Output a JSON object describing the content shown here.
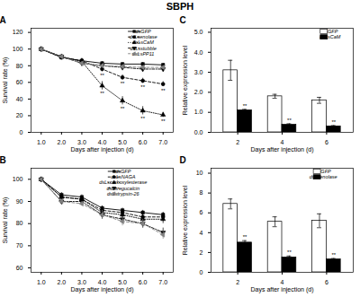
{
  "title": "SBPH",
  "chart_data": [
    {
      "type": "line",
      "title": "A",
      "xlabel": "Days after injection (d)",
      "ylabel": "Survival rate (%)",
      "x": [
        1,
        2,
        3,
        4,
        5,
        6,
        7
      ],
      "xlim": [
        0.5,
        7.5
      ],
      "xticks": [
        1,
        2,
        3,
        4,
        5,
        6,
        7
      ],
      "ylim": [
        0,
        125
      ],
      "yticks": [
        0,
        20,
        40,
        60,
        80,
        100,
        120
      ],
      "legend": "upper right",
      "series": [
        {
          "name": "dsGFP",
          "color": "black",
          "marker": "square",
          "line_style": "solid",
          "values": [
            100,
            90,
            86,
            83,
            82,
            82,
            81
          ],
          "errors": [
            0,
            2,
            2,
            2,
            2,
            2,
            2
          ]
        },
        {
          "name": "dsLsenolase",
          "color": "black",
          "marker": "circle",
          "line_style": "dashed",
          "values": [
            100,
            90,
            86,
            76,
            66,
            62,
            58
          ],
          "errors": [
            0,
            2,
            3,
            3,
            3,
            3,
            3
          ]
        },
        {
          "name": "dsLsCaM",
          "color": "black",
          "marker": "triangle-up",
          "line_style": "dotted",
          "values": [
            100,
            91,
            85,
            56,
            38,
            26,
            21
          ],
          "errors": [
            0,
            2,
            3,
            5,
            5,
            5,
            3
          ]
        },
        {
          "name": "dsLsstubble",
          "color": "black",
          "marker": "triangle-down",
          "line_style": "dashdot",
          "values": [
            100,
            91,
            83,
            80,
            78,
            76,
            76
          ],
          "errors": [
            0,
            2,
            2,
            2,
            2,
            2,
            2
          ]
        },
        {
          "name": "dsLsPP11",
          "color": "gray",
          "marker": "triangle-left",
          "line_style": "dashed",
          "values": [
            100,
            91,
            83,
            80,
            79,
            78,
            78
          ],
          "errors": [
            0,
            2,
            2,
            2,
            2,
            2,
            2
          ]
        }
      ],
      "annotations": [
        {
          "text": "**",
          "x": 4,
          "series": "dsLsenolase"
        },
        {
          "text": "**",
          "x": 5,
          "series": "dsLsenolase"
        },
        {
          "text": "**",
          "x": 6,
          "series": "dsLsenolase"
        },
        {
          "text": "**",
          "x": 7,
          "series": "dsLsenolase"
        },
        {
          "text": "**",
          "x": 4,
          "series": "dsLsCaM"
        },
        {
          "text": "**",
          "x": 5,
          "series": "dsLsCaM"
        },
        {
          "text": "**",
          "x": 6,
          "series": "dsLsCaM"
        },
        {
          "text": "**",
          "x": 7,
          "series": "dsLsCaM"
        }
      ]
    },
    {
      "type": "bar",
      "title": "C",
      "xlabel": "Days after injection (d)",
      "ylabel": "Relative expression level",
      "categories": [
        "2",
        "4",
        "6"
      ],
      "ylim": [
        0,
        5.2
      ],
      "yticks": [
        0,
        1,
        2,
        3,
        4,
        5
      ],
      "legend": "upper right",
      "series": [
        {
          "name": "dsGFP",
          "color": "white",
          "values": [
            3.1,
            1.8,
            1.6
          ],
          "errors": [
            0.5,
            0.1,
            0.15
          ]
        },
        {
          "name": "dsLsCaM",
          "color": "black",
          "values": [
            1.1,
            0.38,
            0.3
          ],
          "errors": [
            0.05,
            0.05,
            0.04
          ]
        }
      ],
      "annotations": [
        {
          "text": "**",
          "category": "2",
          "series": "dsLsCaM"
        },
        {
          "text": "**",
          "category": "4",
          "series": "dsLsCaM"
        },
        {
          "text": "**",
          "category": "6",
          "series": "dsLsCaM"
        }
      ]
    },
    {
      "type": "line",
      "title": "B",
      "xlabel": "Days after injection (d)",
      "ylabel": "Survival rate (%)",
      "x": [
        1,
        2,
        3,
        4,
        5,
        6,
        7
      ],
      "xlim": [
        0.5,
        7.5
      ],
      "xticks": [
        1,
        2,
        3,
        4,
        5,
        6,
        7
      ],
      "ylim": [
        58,
        105
      ],
      "yticks": [
        60,
        70,
        80,
        90,
        100
      ],
      "legend": "upper right",
      "series": [
        {
          "name": "dsGFP",
          "color": "black",
          "marker": "square",
          "line_style": "solid",
          "values": [
            100,
            93,
            92,
            87,
            86,
            85,
            84
          ],
          "errors": [
            0,
            1,
            1,
            1,
            1,
            1,
            1
          ]
        },
        {
          "name": "dsLsNAGA",
          "color": "black",
          "marker": "circle",
          "line_style": "dashed",
          "values": [
            100,
            92,
            91,
            86,
            85,
            83,
            83
          ],
          "errors": [
            0,
            1,
            1,
            1,
            1,
            2,
            2
          ]
        },
        {
          "name": "dsLscarboxylesterase",
          "color": "black",
          "marker": "triangle-up",
          "line_style": "dotted",
          "values": [
            100,
            92,
            91,
            85,
            84,
            82,
            82
          ],
          "errors": [
            0,
            1,
            1,
            1,
            2,
            2,
            2
          ]
        },
        {
          "name": "dsLsregucalcin",
          "color": "black",
          "marker": "triangle-down",
          "line_style": "dashdot",
          "values": [
            100,
            90,
            90,
            84,
            82,
            80,
            76
          ],
          "errors": [
            0,
            1,
            1,
            2,
            2,
            2,
            2
          ]
        },
        {
          "name": "dsLstrypsin-26",
          "color": "gray",
          "marker": "triangle-left",
          "line_style": "dashed",
          "values": [
            100,
            90,
            89,
            84,
            81,
            80,
            75
          ],
          "errors": [
            0,
            1,
            1,
            2,
            2,
            2,
            2
          ]
        }
      ]
    },
    {
      "type": "bar",
      "title": "D",
      "xlabel": "Days after injection (d)",
      "ylabel": "Relative expression level",
      "categories": [
        "2",
        "4",
        "6"
      ],
      "ylim": [
        0,
        10.5
      ],
      "yticks": [
        0,
        2,
        4,
        6,
        8,
        10
      ],
      "legend": "upper right",
      "series": [
        {
          "name": "dsGFP",
          "color": "white",
          "values": [
            6.9,
            5.1,
            5.2
          ],
          "errors": [
            0.5,
            0.5,
            0.7
          ]
        },
        {
          "name": "dsLsenolase",
          "color": "black",
          "values": [
            3.0,
            1.5,
            1.3
          ],
          "errors": [
            0.2,
            0.15,
            0.1
          ]
        }
      ],
      "annotations": [
        {
          "text": "**",
          "category": "2",
          "series": "dsLsenolase"
        },
        {
          "text": "**",
          "category": "4",
          "series": "dsLsenolase"
        },
        {
          "text": "**",
          "category": "6",
          "series": "dsLsenolase"
        }
      ]
    }
  ]
}
